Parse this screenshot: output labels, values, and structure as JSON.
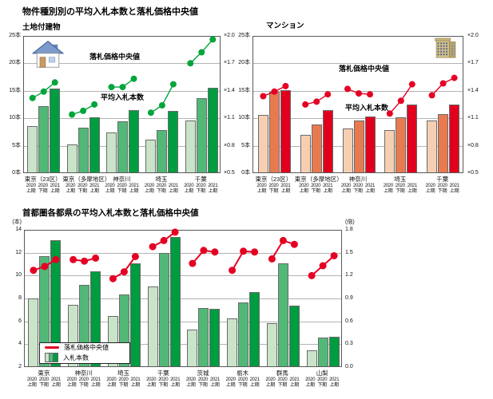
{
  "page": {
    "title": "物件種別別の平均入札本数と落札価格中央値"
  },
  "periods": {
    "years": [
      "2020",
      "2020",
      "2021"
    ],
    "terms": [
      "上期",
      "下期",
      "上期"
    ]
  },
  "chart_data": [
    {
      "id": "land",
      "type": "bar+line",
      "title": "土地付建物",
      "icon": "house-icon",
      "line_label": "落札価格中央値",
      "bar_label": "平均入札本数",
      "bar_axis": {
        "min": 0,
        "max": 25,
        "ticks": [
          "25本",
          "20本",
          "15本",
          "10本",
          "5本",
          "0本"
        ]
      },
      "line_axis": {
        "min": 0.5,
        "max": 2.0,
        "ticks": [
          "×2.0",
          "×1.7",
          "×1.4",
          "×1.1",
          "×0.8",
          "×0.5"
        ]
      },
      "colors": {
        "bars": [
          "#c9e4c9",
          "#52b878",
          "#009c40"
        ],
        "line": "#00a53c"
      },
      "categories": [
        "東京（23区）",
        "東京（多摩地区）",
        "神奈川",
        "埼玉",
        "千葉"
      ],
      "bars": [
        [
          8.4,
          12.1,
          15.3
        ],
        [
          5.1,
          8.1,
          10.0
        ],
        [
          7.2,
          9.3,
          11.3
        ],
        [
          6.0,
          7.7,
          11.2
        ],
        [
          9.4,
          13.5,
          15.4
        ]
      ],
      "line": [
        [
          1.33,
          1.4,
          1.5
        ],
        [
          1.15,
          1.19,
          1.26
        ],
        [
          1.45,
          1.45,
          1.54
        ],
        [
          1.17,
          1.25,
          1.48
        ],
        [
          1.71,
          1.83,
          1.97
        ]
      ]
    },
    {
      "id": "mansion",
      "type": "bar+line",
      "title": "マンション",
      "icon": "building-icon",
      "line_label": "落札価格中央値",
      "bar_label": "平均入札本数",
      "bar_axis": {
        "min": 0,
        "max": 25,
        "ticks": [
          "25本",
          "20本",
          "15本",
          "10本",
          "5本",
          "0本"
        ]
      },
      "line_axis": {
        "min": 0.5,
        "max": 2.0,
        "ticks": [
          "×2.0",
          "×1.7",
          "×1.4",
          "×1.1",
          "×0.8",
          "×0.5"
        ]
      },
      "colors": {
        "bars": [
          "#f6cfb2",
          "#e87a50",
          "#e0001e"
        ],
        "line": "#e50023"
      },
      "categories": [
        "東京（23区）",
        "東京（多摩地区）",
        "神奈川",
        "埼玉",
        "千葉"
      ],
      "bars": [
        [
          10.4,
          14.7,
          15.0
        ],
        [
          6.8,
          8.7,
          11.4
        ],
        [
          8.0,
          9.4,
          10.2
        ],
        [
          7.7,
          10.1,
          12.4
        ],
        [
          9.5,
          10.6,
          12.3
        ]
      ],
      "line": [
        [
          1.35,
          1.4,
          1.46
        ],
        [
          1.26,
          1.29,
          1.37
        ],
        [
          1.43,
          1.38,
          1.37
        ],
        [
          1.16,
          1.3,
          1.48
        ],
        [
          1.36,
          1.49,
          1.55
        ]
      ]
    },
    {
      "id": "prefectures",
      "type": "bar+line",
      "title": "首都圏各都県の平均入札本数と落札価格中央値",
      "legend": {
        "line": "落札価格中央値",
        "bars": "入札本数"
      },
      "bar_axis": {
        "min": 2,
        "max": 14,
        "unit": "(本)",
        "ticks": [
          "14",
          "12",
          "10",
          "8",
          "6",
          "4",
          "2"
        ]
      },
      "line_axis": {
        "min": 0.0,
        "max": 1.8,
        "unit": "(倍)",
        "ticks": [
          "1.8",
          "1.5",
          "1.2",
          "0.9",
          "0.6",
          "0.3",
          "0.0"
        ]
      },
      "colors": {
        "bars": [
          "#c9e4c9",
          "#52b878",
          "#009c40"
        ],
        "line": "#e50023"
      },
      "categories": [
        "東京",
        "神奈川",
        "埼玉",
        "千葉",
        "茨城",
        "栃木",
        "群馬",
        "山梨"
      ],
      "bars": [
        [
          7.9,
          11.6,
          13.0
        ],
        [
          7.4,
          9.1,
          10.3
        ],
        [
          6.4,
          8.3,
          11.0
        ],
        [
          9.0,
          11.9,
          13.3
        ],
        [
          5.2,
          7.1,
          7.0
        ],
        [
          6.2,
          7.6,
          8.5
        ],
        [
          5.8,
          11.0,
          7.3
        ],
        [
          3.4,
          4.5,
          4.6
        ]
      ],
      "line": [
        [
          1.28,
          1.33,
          1.42
        ],
        [
          1.42,
          1.4,
          1.44
        ],
        [
          1.17,
          1.26,
          1.46
        ],
        [
          1.59,
          1.67,
          1.78
        ],
        [
          1.37,
          1.54,
          1.52
        ],
        [
          1.28,
          1.53,
          1.52
        ],
        [
          1.43,
          1.67,
          1.62
        ],
        [
          1.21,
          1.34,
          1.47
        ]
      ]
    }
  ]
}
